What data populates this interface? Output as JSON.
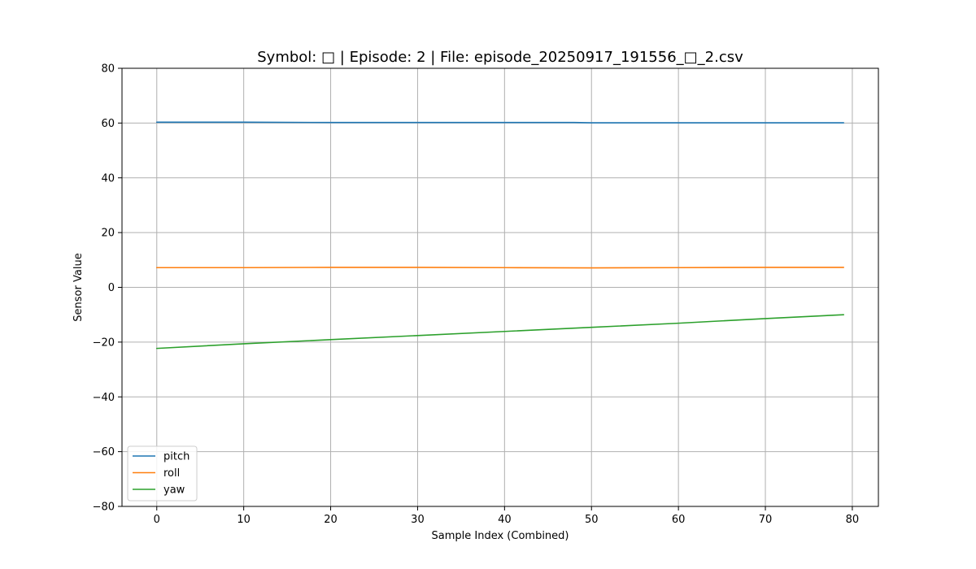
{
  "chart_data": {
    "type": "line",
    "title": "Symbol: □ | Episode: 2 | File: episode_20250917_191556_□_2.csv",
    "xlabel": "Sample Index (Combined)",
    "ylabel": "Sensor Value",
    "xlim": [
      -4,
      83
    ],
    "ylim": [
      -80,
      80
    ],
    "xticks": [
      0,
      10,
      20,
      30,
      40,
      50,
      60,
      70,
      80
    ],
    "yticks": [
      -80,
      -60,
      -40,
      -20,
      0,
      20,
      40,
      60,
      80
    ],
    "grid": true,
    "legend_position": "lower-left",
    "series": [
      {
        "name": "pitch",
        "color": "#1f77b4",
        "x": [
          0,
          10,
          20,
          30,
          40,
          48,
          50,
          60,
          70,
          79
        ],
        "y": [
          60.3,
          60.3,
          60.2,
          60.2,
          60.2,
          60.2,
          60.1,
          60.1,
          60.1,
          60.1
        ]
      },
      {
        "name": "roll",
        "color": "#ff7f0e",
        "x": [
          0,
          10,
          20,
          30,
          40,
          50,
          60,
          70,
          79
        ],
        "y": [
          7.2,
          7.2,
          7.3,
          7.3,
          7.2,
          7.1,
          7.2,
          7.3,
          7.3
        ]
      },
      {
        "name": "yaw",
        "color": "#2ca02c",
        "x": [
          0,
          10,
          20,
          30,
          40,
          50,
          60,
          70,
          79
        ],
        "y": [
          -22.3,
          -20.6,
          -19.1,
          -17.6,
          -16.1,
          -14.6,
          -13.1,
          -11.4,
          -10.0
        ]
      }
    ]
  }
}
